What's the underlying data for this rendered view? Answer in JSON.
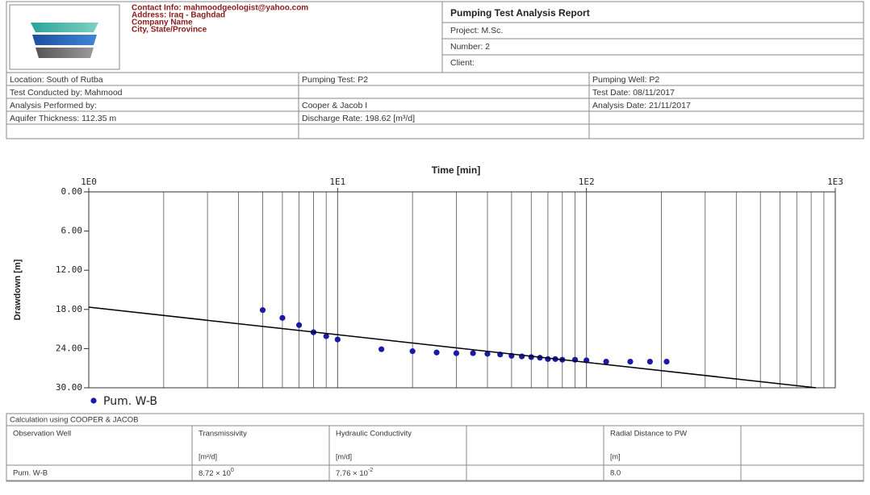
{
  "header": {
    "contact": [
      "Contact Info: mahmoodgeologist@yahoo.com",
      "Address: Iraq - Baghdad",
      "Company Name",
      "City, State/Province"
    ],
    "title": "Pumping Test Analysis Report",
    "fields": [
      "Project: M.Sc.",
      "Number: 2",
      "Client:"
    ]
  },
  "info_table": {
    "rows": [
      [
        "Location: South of Rutba",
        "Pumping Test: P2",
        "Pumping Well: P2"
      ],
      [
        "Test Conducted by: Mahmood",
        null,
        "Test Date: 08/11/2017"
      ],
      [
        "Analysis Performed by:",
        "Cooper & Jacob I",
        "Analysis Date: 21/11/2017"
      ],
      [
        "Aquifer Thickness: 112.35 m",
        "Discharge Rate: 198.62 [m³/d]",
        null
      ],
      [
        null,
        null,
        null
      ]
    ]
  },
  "chart_data": {
    "type": "scatter",
    "title": "Time [min]",
    "y_label": "Drawdown [m]",
    "xscale": "log",
    "yinverted": true,
    "xlim": [
      1,
      1000
    ],
    "ylim": [
      0,
      30
    ],
    "xticks": [
      {
        "value": 1,
        "label": "1E0"
      },
      {
        "value": 10,
        "label": "1E1"
      },
      {
        "value": 100,
        "label": "1E2"
      },
      {
        "value": 1000,
        "label": "1E3"
      }
    ],
    "yticks": [
      {
        "value": 0,
        "label": "0.00"
      },
      {
        "value": 6,
        "label": "6.00"
      },
      {
        "value": 12,
        "label": "12.00"
      },
      {
        "value": 18,
        "label": "18.00"
      },
      {
        "value": 24,
        "label": "24.00"
      },
      {
        "value": 30,
        "label": "30.00"
      }
    ],
    "grid": true,
    "series": [
      {
        "name": "Pum. W-B",
        "color": "#1a1aa6",
        "kind": "points",
        "x": [
          5,
          6,
          7,
          8,
          9,
          10,
          15,
          20,
          25,
          30,
          35,
          40,
          45,
          50,
          55,
          60,
          65,
          70,
          75,
          80,
          90,
          100,
          120,
          150,
          180,
          210
        ],
        "values": [
          18.1,
          19.3,
          20.4,
          21.5,
          22.1,
          22.6,
          24.1,
          24.4,
          24.6,
          24.7,
          24.7,
          24.8,
          24.9,
          25.1,
          25.2,
          25.3,
          25.4,
          25.6,
          25.6,
          25.7,
          25.7,
          25.8,
          26.0,
          26.0,
          26.0,
          26.0
        ]
      },
      {
        "color": "#000000",
        "kind": "line",
        "x": [
          1,
          836
        ],
        "values": [
          17.65,
          30
        ]
      }
    ]
  },
  "results_table": {
    "caption": "Calculation using COOPER & JACOB",
    "headers": [
      "Observation Well",
      "Transmissivity",
      "Hydraulic Conductivity",
      null,
      "Radial Distance to PW",
      null
    ],
    "units": [
      null,
      "[m²/d]",
      "[m/d]",
      null,
      "[m]",
      null
    ],
    "row": [
      "Pum. W-B",
      {
        "mantissa": "8.72 × 10",
        "exponent": "0"
      },
      {
        "mantissa": "7.76 × 10",
        "exponent": "-2"
      },
      null,
      "8.0",
      null
    ]
  }
}
